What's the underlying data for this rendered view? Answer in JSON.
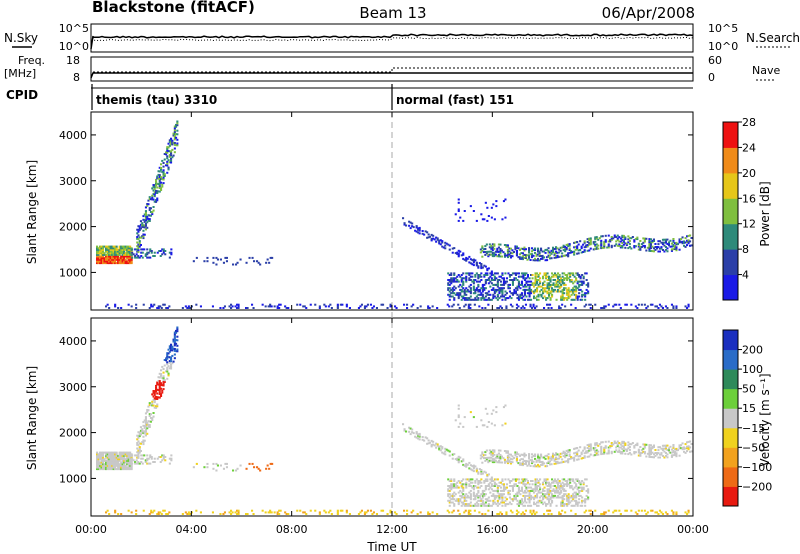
{
  "header": {
    "station": "Blackstone (fitACF)",
    "beam": "Beam 13",
    "date": "06/Apr/2008"
  },
  "labels": {
    "nsky": "N.Sky",
    "nsearch": "N.Search",
    "freq_top": "Freq.",
    "freq_unit": "[MHz]",
    "nave": "Nave",
    "cpid": "CPID",
    "time_axis": "Time UT",
    "slant_range": "Slant Range [km]",
    "power_label": "Power [dB]",
    "velocity_label": "Velocity [m s⁻¹]"
  },
  "noise_panel": {
    "left_ticks": [
      "10^5",
      "10^0"
    ],
    "right_ticks": [
      "10^5",
      "10^0"
    ]
  },
  "freq_panel": {
    "left_ticks": [
      "18",
      "8"
    ],
    "right_ticks": [
      "60",
      "0"
    ]
  },
  "cpid_panel": {
    "modes": [
      {
        "label": "themis (tau) 3310",
        "start_hour": 0
      },
      {
        "label": "normal (fast) 151",
        "start_hour": 12
      }
    ]
  },
  "chart_data": [
    {
      "type": "heatmap",
      "name": "power",
      "x_ticks": [
        "00:00",
        "04:00",
        "08:00",
        "12:00",
        "16:00",
        "20:00",
        "00:00"
      ],
      "xlim_hours": [
        0,
        24
      ],
      "y_ticks": [
        1000,
        2000,
        3000,
        4000
      ],
      "ylim_km": [
        180,
        4500
      ],
      "colorbar": {
        "ticks": [
          "4",
          "8",
          "12",
          "16",
          "20",
          "24",
          "28"
        ],
        "range": [
          0,
          30
        ],
        "colors": [
          "#1a1ae6",
          "#2b3fa8",
          "#2e8a7a",
          "#7fbf3f",
          "#e6c619",
          "#f08b19",
          "#ee1111"
        ]
      }
    },
    {
      "type": "heatmap",
      "name": "velocity",
      "x_ticks": [
        "00:00",
        "04:00",
        "08:00",
        "12:00",
        "16:00",
        "20:00",
        "00:00"
      ],
      "xlim_hours": [
        0,
        24
      ],
      "y_ticks": [
        1000,
        2000,
        3000,
        4000
      ],
      "ylim_km": [
        180,
        4500
      ],
      "colorbar": {
        "ticks": [
          "200",
          "100",
          "50",
          "15",
          "−15",
          "−50",
          "−100",
          "−200"
        ],
        "colors": [
          "#1a2fbf",
          "#2a6cc8",
          "#2e8a5a",
          "#6ccf3a",
          "#c8c8c8",
          "#f0d21e",
          "#f2a21e",
          "#ee6a16",
          "#e81a10"
        ]
      }
    }
  ]
}
